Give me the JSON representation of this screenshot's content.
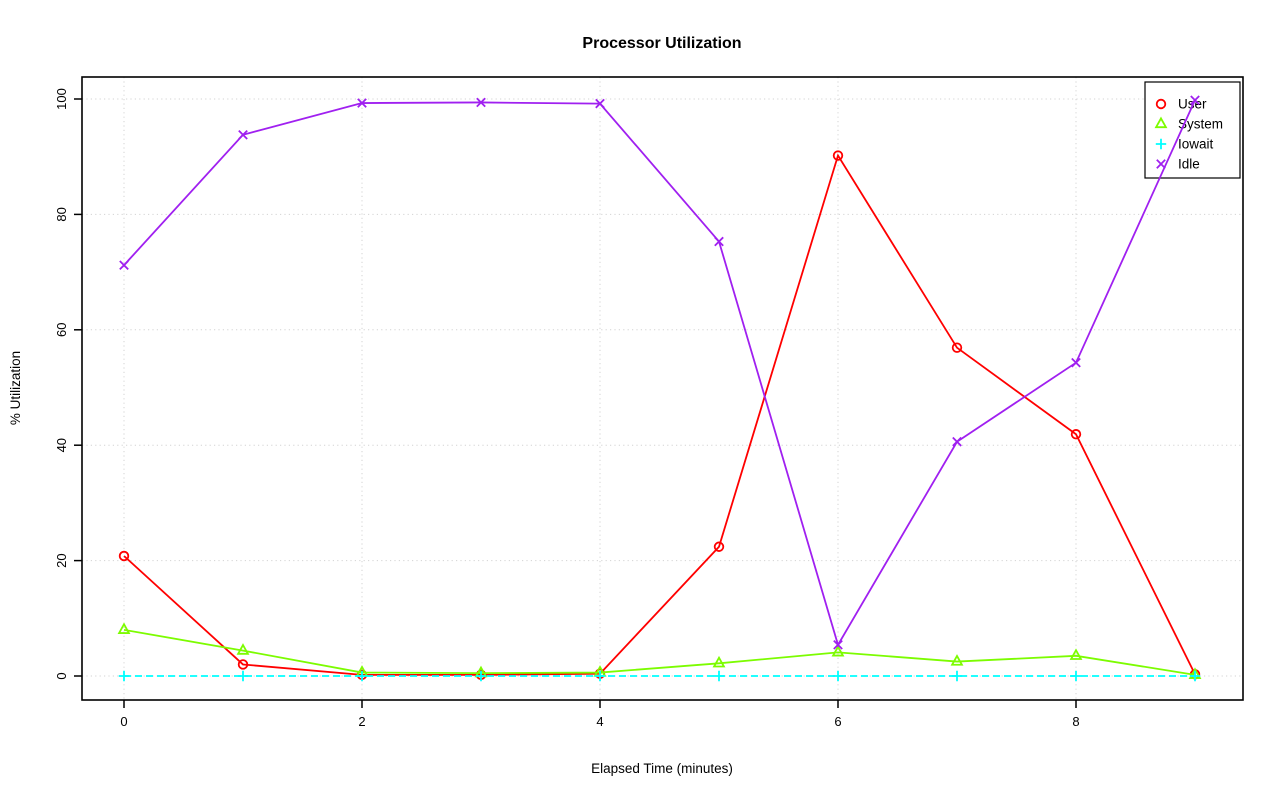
{
  "chart_data": {
    "type": "line",
    "title": "Processor Utilization",
    "xlabel": "Elapsed Time (minutes)",
    "ylabel": "% Utilization",
    "x": [
      0,
      1,
      2,
      3,
      4,
      5,
      6,
      7,
      8,
      9
    ],
    "series": [
      {
        "name": "User",
        "color": "#ff0000",
        "marker": "circle",
        "linestyle": "solid",
        "values": [
          20.8,
          2.0,
          0.2,
          0.2,
          0.4,
          22.4,
          90.2,
          56.9,
          41.9,
          0.3
        ]
      },
      {
        "name": "System",
        "color": "#7cfc00",
        "marker": "triangle",
        "linestyle": "solid",
        "values": [
          8.0,
          4.4,
          0.6,
          0.5,
          0.6,
          2.2,
          4.1,
          2.5,
          3.5,
          0.2
        ]
      },
      {
        "name": "Iowait",
        "color": "#00ffff",
        "marker": "plus",
        "linestyle": "dashed",
        "values": [
          0,
          0,
          0,
          0,
          0,
          0,
          0,
          0,
          0,
          0
        ]
      },
      {
        "name": "Idle",
        "color": "#a020f0",
        "marker": "x",
        "linestyle": "solid",
        "values": [
          71.2,
          93.8,
          99.3,
          99.4,
          99.2,
          75.3,
          5.4,
          40.6,
          54.3,
          99.8
        ]
      }
    ],
    "x_ticks": [
      0,
      2,
      4,
      6,
      8
    ],
    "y_ticks": [
      0,
      20,
      40,
      60,
      80,
      100
    ],
    "xlim": [
      -0.36,
      9.36
    ],
    "ylim": [
      -4.2,
      103.8
    ],
    "grid": "dotted",
    "grid_color": "#d3d3d3",
    "background": "#ffffff",
    "legend_position": "top-right",
    "legend_labels": [
      "User",
      "System",
      "Iowait",
      "Idle"
    ]
  }
}
